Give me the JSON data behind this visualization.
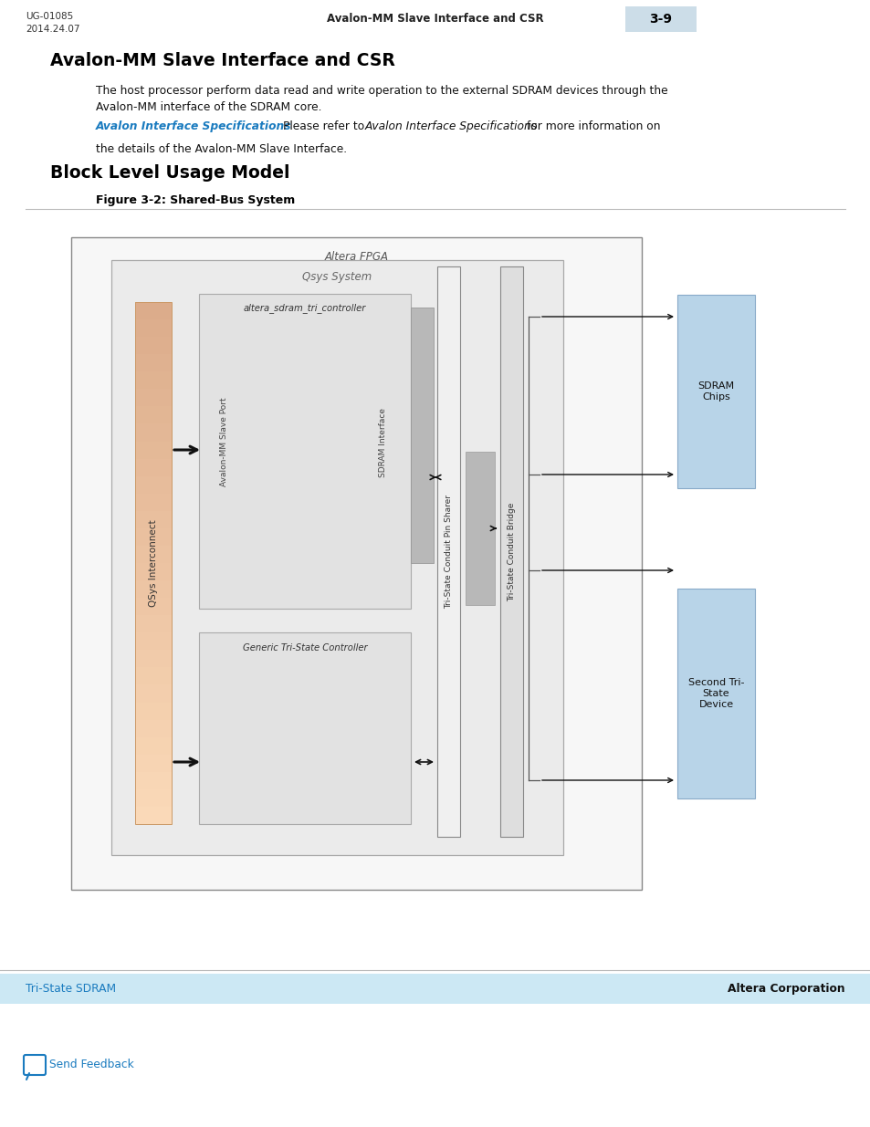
{
  "page_width": 9.54,
  "page_height": 12.35,
  "bg_color": "#ffffff",
  "header_left_line1": "UG-01085",
  "header_left_line2": "2014.24.07",
  "header_center": "Avalon-MM Slave Interface and CSR",
  "header_right": "3-9",
  "header_right_bg": "#ccdde8",
  "section1_title": "Avalon-MM Slave Interface and CSR",
  "section1_body1": "The host processor perform data read and write operation to the external SDRAM devices through the\nAvalon-MM interface of the SDRAM core.",
  "section1_link": "Avalon Interface Specifications",
  "section1_body2_italic": "Avalon Interface Specifications",
  "section1_body2_pre": "Please refer to ",
  "section1_body2_post": " for more information on\nthe details of the Avalon-MM Slave Interface.",
  "section2_title": "Block Level Usage Model",
  "figure_caption": "Figure 3-2: Shared-Bus System",
  "diagram_outer_label": "Altera FPGA",
  "diagram_inner_label": "Qsys System",
  "qsys_interconnect_label": "QSys Interconnect",
  "controller_box_label": "altera_sdram_tri_controller",
  "avalon_port_label": "Avalon-MM Slave Port",
  "sdram_interface_label": "SDRAM Interface",
  "generic_controller_label": "Generic Tri-State Controller",
  "pin_sharer_label": "Tri-State Conduit Pin Sharer",
  "conduit_bridge_label": "Tri-State Conduit Bridge",
  "sdram_chips_label": "SDRAM\nChips",
  "second_device_label": "Second Tri-\nState\nDevice",
  "footer_left": "Tri-State SDRAM",
  "footer_right": "Altera Corporation",
  "footer_bg": "#cce8f4",
  "send_feedback": "Send Feedback",
  "link_color": "#1a7bbf",
  "text_color": "#000000",
  "orange_light": "#f5d4b0",
  "blue_light": "#b8d4e8"
}
